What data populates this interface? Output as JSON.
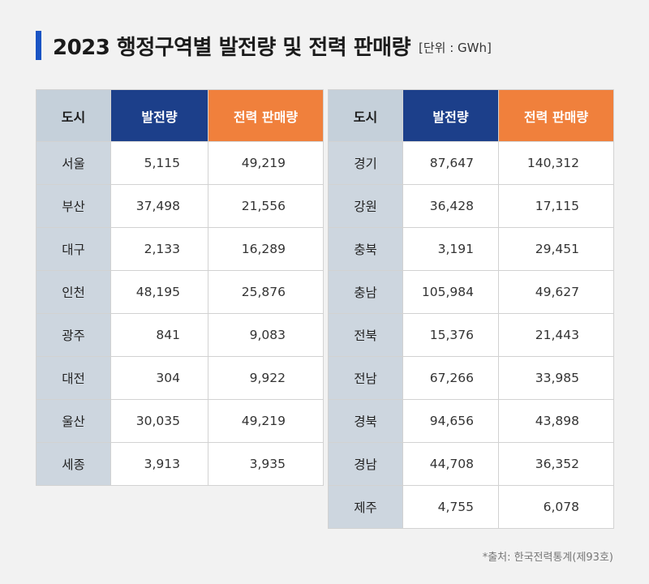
{
  "title": {
    "main": "2023 행정구역별 발전량 및 전력 판매량",
    "unit": "[단위 : GWh]"
  },
  "colors": {
    "accent_blue": "#1a54c4",
    "header_generation": "#1c3f8a",
    "header_sales": "#f0803c",
    "city_cell": "#cdd6df"
  },
  "headers": {
    "city": "도시",
    "generation": "발전량",
    "sales": "전력 판매량"
  },
  "left_table": [
    {
      "city": "서울",
      "generation": "5,115",
      "sales": "49,219"
    },
    {
      "city": "부산",
      "generation": "37,498",
      "sales": "21,556"
    },
    {
      "city": "대구",
      "generation": "2,133",
      "sales": "16,289"
    },
    {
      "city": "인천",
      "generation": "48,195",
      "sales": "25,876"
    },
    {
      "city": "광주",
      "generation": "841",
      "sales": "9,083"
    },
    {
      "city": "대전",
      "generation": "304",
      "sales": "9,922"
    },
    {
      "city": "울산",
      "generation": "30,035",
      "sales": "49,219"
    },
    {
      "city": "세종",
      "generation": "3,913",
      "sales": "3,935"
    }
  ],
  "right_table": [
    {
      "city": "경기",
      "generation": "87,647",
      "sales": "140,312"
    },
    {
      "city": "강원",
      "generation": "36,428",
      "sales": "17,115"
    },
    {
      "city": "충북",
      "generation": "3,191",
      "sales": "29,451"
    },
    {
      "city": "충남",
      "generation": "105,984",
      "sales": "49,627"
    },
    {
      "city": "전북",
      "generation": "15,376",
      "sales": "21,443"
    },
    {
      "city": "전남",
      "generation": "67,266",
      "sales": "33,985"
    },
    {
      "city": "경북",
      "generation": "94,656",
      "sales": "43,898"
    },
    {
      "city": "경남",
      "generation": "44,708",
      "sales": "36,352"
    },
    {
      "city": "제주",
      "generation": "4,755",
      "sales": "6,078"
    }
  ],
  "source": "*출처: 한국전력통계(제93호)"
}
